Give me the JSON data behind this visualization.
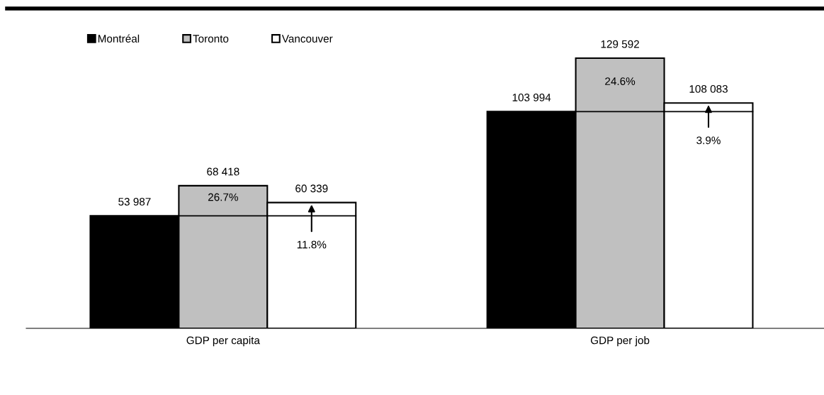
{
  "chart_data": {
    "type": "bar",
    "categories": [
      "GDP per capita",
      "GDP per job"
    ],
    "series": [
      {
        "name": "Montréal",
        "color": "#000000",
        "values": [
          53987,
          103994
        ]
      },
      {
        "name": "Toronto",
        "color": "#c0c0c0",
        "values": [
          68418,
          129592
        ]
      },
      {
        "name": "Vancouver",
        "color": "#ffffff",
        "values": [
          60339,
          108083
        ]
      }
    ],
    "ref_lines": [
      {
        "axis": "y",
        "value": 53987,
        "color": "#000000"
      },
      {
        "axis": "y",
        "value": 103994,
        "color": "#000000"
      }
    ],
    "tick_labels": "x",
    "data_labels": true,
    "legend": "top left",
    "grid": false,
    "annotations": [
      "26.7%",
      "11.8%",
      "24.6%",
      "3.9%"
    ]
  }
}
